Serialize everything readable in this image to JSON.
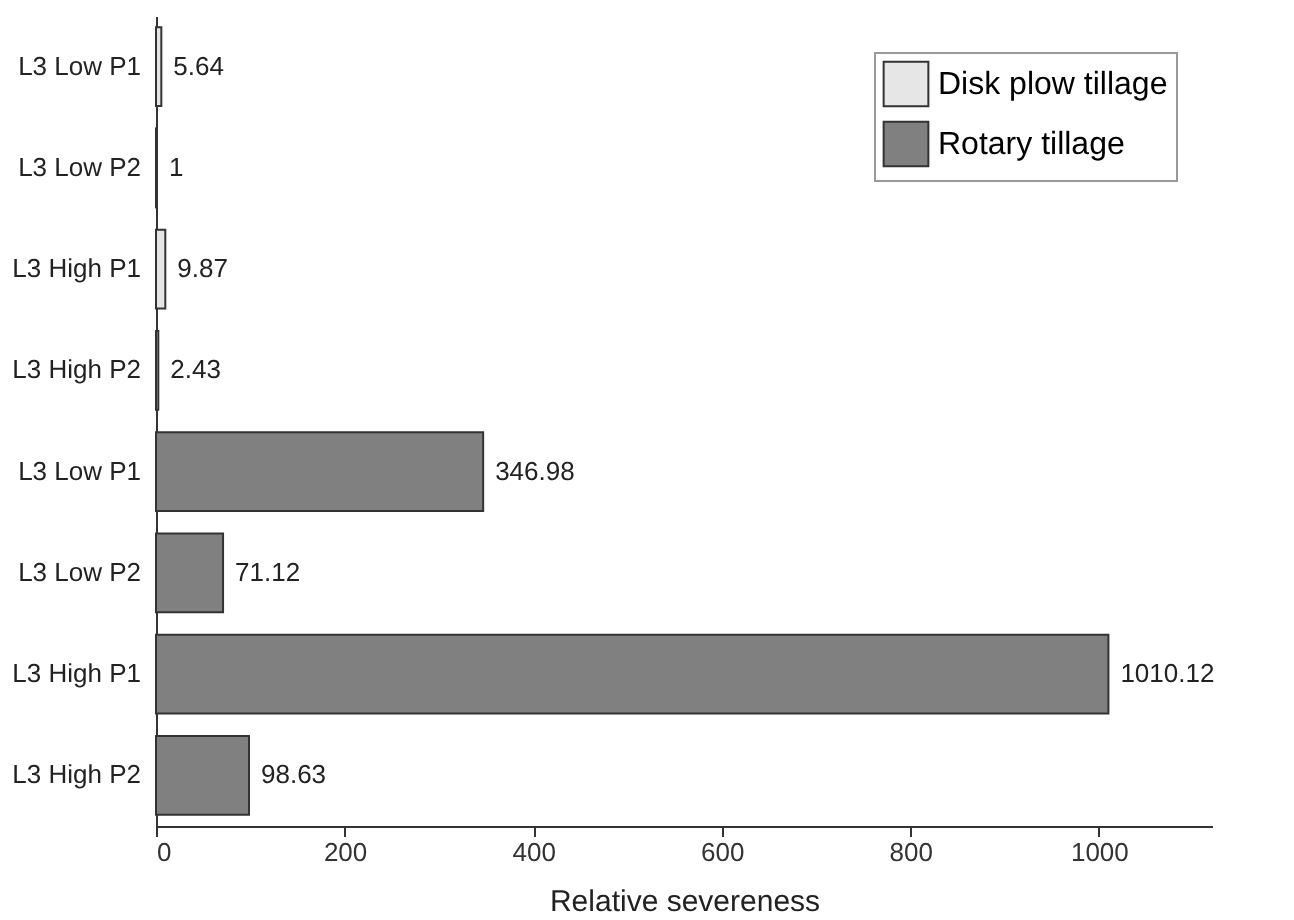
{
  "chart_data": {
    "type": "bar",
    "orientation": "horizontal",
    "xlabel": "Relative severeness",
    "categories": [
      "L3 Low P1",
      "L3 Low P2",
      "L3 High P1",
      "L3 High P2",
      "L3 Low P1",
      "L3 Low P2",
      "L3 High P1",
      "L3 High P2"
    ],
    "series": [
      {
        "name": "Disk plow tillage",
        "color": "#e6e6e6",
        "values": [
          5.64,
          1,
          9.87,
          2.43,
          null,
          null,
          null,
          null
        ]
      },
      {
        "name": "Rotary tillage",
        "color": "#808080",
        "values": [
          null,
          null,
          null,
          null,
          346.98,
          71.12,
          1010.12,
          98.63
        ]
      }
    ],
    "xlim": [
      0,
      1120
    ],
    "xticks": [
      0,
      200,
      400,
      600,
      800,
      1000
    ],
    "data_labels": true,
    "legend": "top right",
    "grid": false
  }
}
